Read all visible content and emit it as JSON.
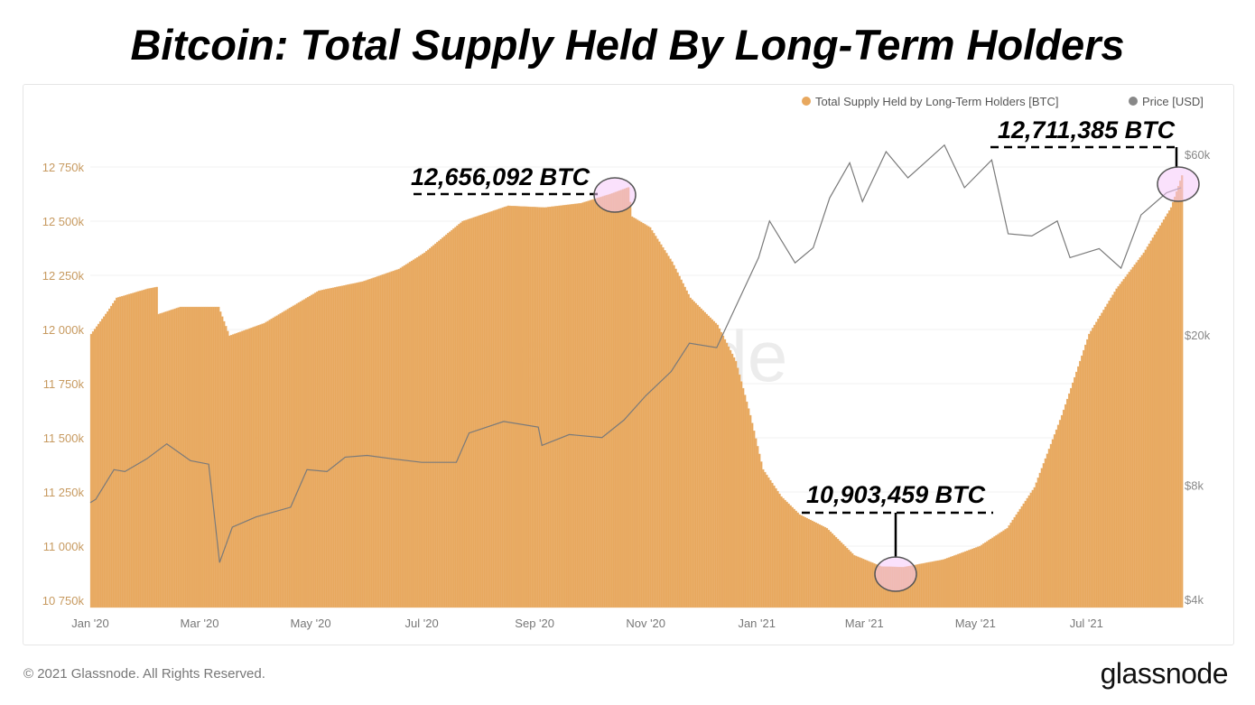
{
  "title": "Bitcoin: Total Supply Held By Long-Term Holders",
  "footer": {
    "copyright": "© 2021 Glassnode. All Rights Reserved.",
    "logo": "glassnode"
  },
  "watermark": "glassnode",
  "chart_data": {
    "type": "bar+line",
    "title": "Bitcoin: Total Supply Held By Long-Term Holders",
    "legend": {
      "placement": "top-right",
      "items": [
        {
          "label": "Total Supply Held by Long-Term Holders [BTC]",
          "color": "#e8a85e"
        },
        {
          "label": "Price [USD]",
          "color": "#888888"
        }
      ]
    },
    "x_ticks": [
      "Jan '20",
      "Mar '20",
      "May '20",
      "Jul '20",
      "Sep '20",
      "Nov '20",
      "Jan '21",
      "Mar '21",
      "May '21",
      "Jul '21"
    ],
    "x_tick_dates": [
      "2020-01-01",
      "2020-03-01",
      "2020-05-01",
      "2020-07-01",
      "2020-09-01",
      "2020-11-01",
      "2021-01-01",
      "2021-03-01",
      "2021-05-01",
      "2021-07-01"
    ],
    "xlim": [
      "2020-01-01",
      "2021-08-22"
    ],
    "y_left": {
      "ticks": [
        "10 750k",
        "11 000k",
        "11 250k",
        "11 500k",
        "11 750k",
        "12 000k",
        "12 250k",
        "12 500k",
        "12 750k"
      ],
      "tick_values": [
        10750,
        11000,
        11250,
        11500,
        11750,
        12000,
        12250,
        12500,
        12750
      ],
      "unit": "k BTC",
      "ylim": [
        10720,
        12900
      ],
      "color": "#c79a60"
    },
    "y_right": {
      "ticks": [
        "$4k",
        "$8k",
        "$20k",
        "$60k"
      ],
      "tick_values": [
        4000,
        8000,
        20000,
        60000
      ],
      "scale": "log",
      "ylim": [
        3900,
        80000
      ]
    },
    "grid": true,
    "series": [
      {
        "name": "Total Supply Held by Long-Term Holders [BTC]",
        "type": "bar",
        "color": "#e8a85e",
        "unit": "k BTC",
        "points": [
          [
            "2020-01-01",
            11979
          ],
          [
            "2020-01-10",
            12083
          ],
          [
            "2020-01-15",
            12146
          ],
          [
            "2020-02-01",
            12188
          ],
          [
            "2020-02-06",
            12196
          ],
          [
            "2020-02-07",
            12071
          ],
          [
            "2020-02-19",
            12104
          ],
          [
            "2020-03-11",
            12104
          ],
          [
            "2020-03-17",
            11971
          ],
          [
            "2020-04-05",
            12029
          ],
          [
            "2020-04-20",
            12104
          ],
          [
            "2020-05-05",
            12179
          ],
          [
            "2020-05-29",
            12221
          ],
          [
            "2020-06-18",
            12279
          ],
          [
            "2020-07-02",
            12354
          ],
          [
            "2020-07-23",
            12500
          ],
          [
            "2020-08-17",
            12571
          ],
          [
            "2020-09-06",
            12563
          ],
          [
            "2020-09-26",
            12583
          ],
          [
            "2020-10-12",
            12625
          ],
          [
            "2020-10-22",
            12656
          ],
          [
            "2020-10-24",
            12521
          ],
          [
            "2020-11-03",
            12471
          ],
          [
            "2020-11-15",
            12313
          ],
          [
            "2020-11-25",
            12146
          ],
          [
            "2020-12-10",
            12021
          ],
          [
            "2020-12-20",
            11854
          ],
          [
            "2020-12-28",
            11604
          ],
          [
            "2021-01-04",
            11354
          ],
          [
            "2021-01-14",
            11229
          ],
          [
            "2021-01-24",
            11146
          ],
          [
            "2021-02-08",
            11083
          ],
          [
            "2021-02-23",
            10958
          ],
          [
            "2021-03-10",
            10906
          ],
          [
            "2021-03-22",
            10903
          ],
          [
            "2021-04-13",
            10938
          ],
          [
            "2021-05-03",
            11000
          ],
          [
            "2021-05-18",
            11083
          ],
          [
            "2021-06-02",
            11271
          ],
          [
            "2021-06-17",
            11604
          ],
          [
            "2021-07-02",
            11979
          ],
          [
            "2021-07-17",
            12188
          ],
          [
            "2021-08-01",
            12354
          ],
          [
            "2021-08-16",
            12563
          ],
          [
            "2021-08-22",
            12711
          ]
        ]
      },
      {
        "name": "Price [USD]",
        "type": "line",
        "color": "#888888",
        "axis": "right",
        "points": [
          [
            "2020-01-01",
            7200
          ],
          [
            "2020-01-04",
            7350
          ],
          [
            "2020-01-14",
            8800
          ],
          [
            "2020-01-20",
            8700
          ],
          [
            "2020-02-01",
            9400
          ],
          [
            "2020-02-12",
            10300
          ],
          [
            "2020-02-25",
            9300
          ],
          [
            "2020-03-06",
            9100
          ],
          [
            "2020-03-12",
            5000
          ],
          [
            "2020-03-19",
            6200
          ],
          [
            "2020-04-01",
            6600
          ],
          [
            "2020-04-20",
            7000
          ],
          [
            "2020-04-29",
            8800
          ],
          [
            "2020-05-10",
            8700
          ],
          [
            "2020-05-20",
            9500
          ],
          [
            "2020-06-01",
            9600
          ],
          [
            "2020-06-15",
            9400
          ],
          [
            "2020-07-01",
            9200
          ],
          [
            "2020-07-20",
            9200
          ],
          [
            "2020-07-27",
            11000
          ],
          [
            "2020-08-15",
            11800
          ],
          [
            "2020-09-03",
            11400
          ],
          [
            "2020-09-05",
            10200
          ],
          [
            "2020-09-20",
            10900
          ],
          [
            "2020-10-08",
            10700
          ],
          [
            "2020-10-20",
            11900
          ],
          [
            "2020-11-01",
            13800
          ],
          [
            "2020-11-15",
            16000
          ],
          [
            "2020-11-25",
            19000
          ],
          [
            "2020-12-10",
            18500
          ],
          [
            "2020-12-20",
            23500
          ],
          [
            "2021-01-02",
            32000
          ],
          [
            "2021-01-08",
            40000
          ],
          [
            "2021-01-22",
            31000
          ],
          [
            "2021-02-01",
            34000
          ],
          [
            "2021-02-10",
            46000
          ],
          [
            "2021-02-21",
            57000
          ],
          [
            "2021-02-28",
            45000
          ],
          [
            "2021-03-13",
            61000
          ],
          [
            "2021-03-25",
            52000
          ],
          [
            "2021-04-14",
            63500
          ],
          [
            "2021-04-25",
            49000
          ],
          [
            "2021-05-10",
            58000
          ],
          [
            "2021-05-19",
            37000
          ],
          [
            "2021-06-01",
            36500
          ],
          [
            "2021-06-15",
            40000
          ],
          [
            "2021-06-22",
            32000
          ],
          [
            "2021-07-08",
            33800
          ],
          [
            "2021-07-20",
            30000
          ],
          [
            "2021-07-31",
            41500
          ],
          [
            "2021-08-14",
            47500
          ],
          [
            "2021-08-22",
            49000
          ]
        ]
      }
    ],
    "annotations": [
      {
        "label": "12,656,092 BTC",
        "date": "2020-10-22",
        "value": 12656
      },
      {
        "label": "10,903,459 BTC",
        "date": "2021-03-22",
        "value": 10903
      },
      {
        "label": "12,711,385 BTC",
        "date": "2021-08-22",
        "value": 12711
      }
    ]
  }
}
